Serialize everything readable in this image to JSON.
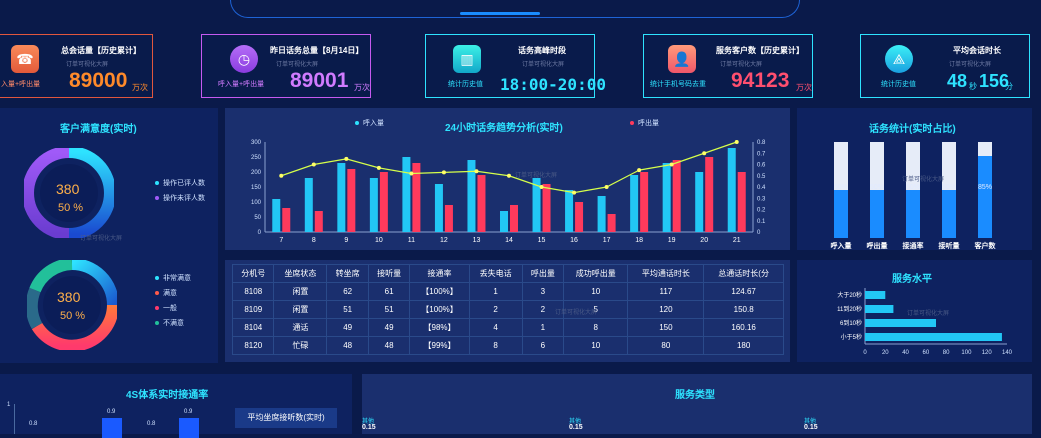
{
  "kpis": [
    {
      "title": "总会话量【历史累计】",
      "subtitle": "订单可视化大屏",
      "value": "89000",
      "unit": "万次",
      "sub": "入量+呼出量"
    },
    {
      "title": "昨日话务总量【8月14日】",
      "subtitle": "订单可视化大屏",
      "value": "89001",
      "unit": "万次",
      "sub": "呼入量+呼出量"
    },
    {
      "title": "话务高峰时段",
      "subtitle": "订单可视化大屏",
      "value": "18:00-20:00",
      "unit": "",
      "sub": "统计历史值"
    },
    {
      "title": "服务客户数【历史累计】",
      "subtitle": "订单可视化大屏",
      "value": "94123",
      "unit": "万次",
      "sub": "统计手机号码去重"
    },
    {
      "title": "平均会话时长",
      "subtitle": "订单可视化大屏",
      "value_min": "48",
      "min_unit": "秒",
      "value_sec": "156",
      "sec_unit": "分",
      "sub": "统计历史值"
    }
  ],
  "satisfaction": {
    "title": "客户满意度(实时)",
    "ring1_value": "380",
    "ring1_pct": "50 %",
    "ring1_legend": [
      "操作已评人数",
      "操作未评人数"
    ],
    "ring2_value": "380",
    "ring2_pct": "50 %",
    "ring2_legend": [
      "非常满意",
      "满意",
      "一般",
      "不满意"
    ],
    "wm": "订单可视化大屏"
  },
  "trend": {
    "title": "24小时话务趋势分析(实时)",
    "legend_in": "呼入量",
    "legend_out": "呼出量",
    "wm": "订单可视化大屏",
    "chart_data": {
      "type": "bar",
      "categories": [
        "7",
        "8",
        "9",
        "10",
        "11",
        "12",
        "13",
        "14",
        "15",
        "16",
        "17",
        "18",
        "19",
        "20",
        "21"
      ],
      "series": [
        {
          "name": "呼入量",
          "values": [
            110,
            180,
            230,
            180,
            250,
            160,
            240,
            70,
            180,
            140,
            120,
            190,
            230,
            200,
            280
          ]
        },
        {
          "name": "呼出量",
          "values": [
            80,
            70,
            210,
            200,
            230,
            90,
            190,
            90,
            160,
            100,
            60,
            200,
            240,
            250,
            200
          ]
        },
        {
          "name": "line",
          "values": [
            0.5,
            0.6,
            0.65,
            0.57,
            0.52,
            0.53,
            0.54,
            0.5,
            0.4,
            0.35,
            0.4,
            0.55,
            0.6,
            0.7,
            0.8
          ]
        }
      ],
      "ylim": [
        0,
        300
      ],
      "yticks": [
        "0",
        "50",
        "100",
        "150",
        "200",
        "250",
        "300"
      ],
      "y2lim": [
        0,
        0.8
      ],
      "y2ticks": [
        "0",
        "0.1",
        "0.2",
        "0.3",
        "0.4",
        "0.5",
        "0.6",
        "0.7",
        "0.8"
      ]
    }
  },
  "stats": {
    "title": "话务统计(实时占比)",
    "wm": "订单可视化大屏",
    "chart_data": {
      "type": "bar",
      "categories": [
        "呼入量",
        "呼出量",
        "接通率",
        "接听量",
        "客户数"
      ],
      "values": [
        50,
        50,
        50,
        50,
        85
      ],
      "labels": [
        "50%",
        "50%",
        "50%",
        "50%",
        "85%"
      ],
      "ylim": [
        0,
        100
      ]
    }
  },
  "table": {
    "headers": [
      "分机号",
      "坐席状态",
      "转坐席",
      "接听量",
      "接通率",
      "丢失电话",
      "呼出量",
      "成功呼出量",
      "平均通话时长",
      "总通话时长(分"
    ],
    "rows": [
      [
        "8108",
        "闲置",
        "62",
        "61",
        "【100%】",
        "1",
        "3",
        "10",
        "117",
        "124.67"
      ],
      [
        "8109",
        "闲置",
        "51",
        "51",
        "【100%】",
        "2",
        "2",
        "5",
        "120",
        "150.8"
      ],
      [
        "8104",
        "通话",
        "49",
        "49",
        "【98%】",
        "4",
        "1",
        "8",
        "150",
        "160.16"
      ],
      [
        "8120",
        "忙碌",
        "48",
        "48",
        "【99%】",
        "8",
        "6",
        "10",
        "80",
        "180"
      ]
    ],
    "wm": "订单可视化大屏"
  },
  "service": {
    "title": "服务水平",
    "wm": "订单可视化大屏",
    "chart_data": {
      "type": "bar",
      "categories": [
        "大于20秒",
        "11到20秒",
        "6到10秒",
        "小于5秒"
      ],
      "values": [
        20,
        28,
        70,
        135
      ],
      "xlim": [
        0,
        140
      ],
      "xticks": [
        "0",
        "20",
        "40",
        "60",
        "80",
        "100",
        "120",
        "140"
      ]
    }
  },
  "bottom_left": {
    "title": "4S体系实时接通率",
    "side_label": "平均坐席接听数(实时)",
    "ytick": "1",
    "labels": [
      "0.8",
      "0.9",
      "0.8",
      "0.9"
    ]
  },
  "bottom_right": {
    "title": "服务类型",
    "items": [
      "其他",
      "其他",
      "其他"
    ],
    "values": [
      "0.15",
      "0.15",
      "0.15"
    ]
  },
  "colors": {
    "bg": "#0a1a4a",
    "panel": "#122a68",
    "cyan": "#2ee3ff",
    "blue": "#1a8cff",
    "red": "#ff3a5c"
  }
}
